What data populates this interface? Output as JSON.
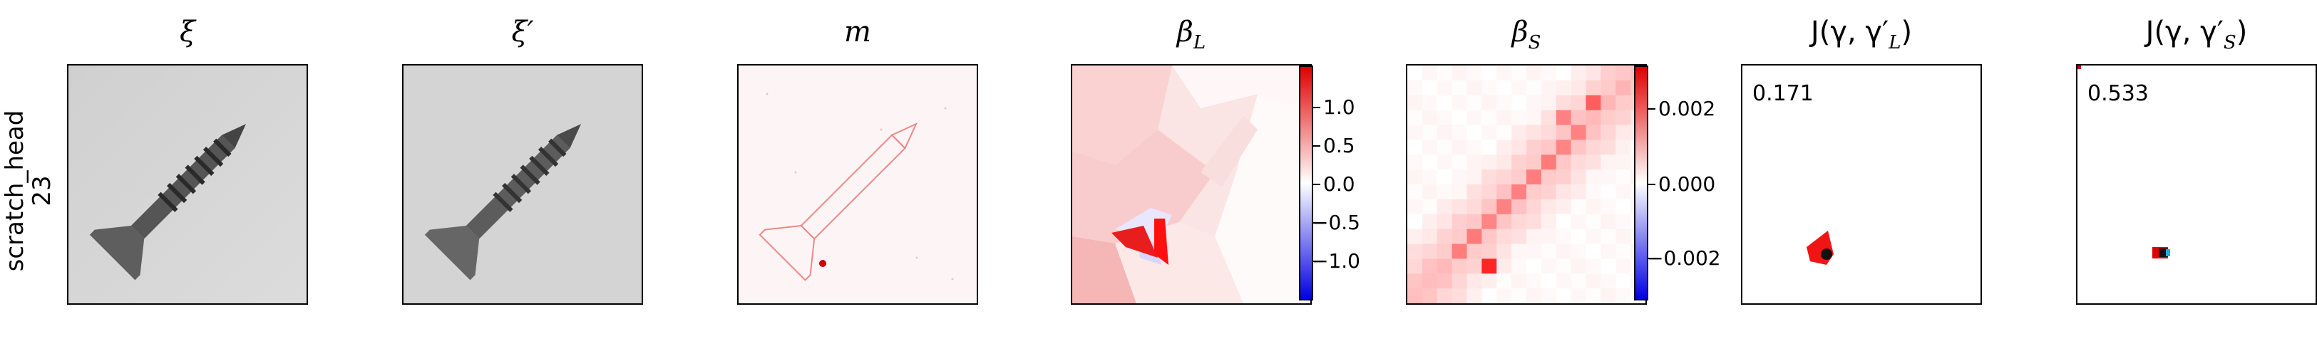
{
  "row_label": {
    "line1": "scratch_head",
    "line2": "23"
  },
  "panels": {
    "xi": {
      "title": "ξ"
    },
    "xi_prime": {
      "title": "ξ′"
    },
    "m": {
      "title": "m"
    },
    "beta_l": {
      "title_main": "β",
      "title_sub": "L"
    },
    "beta_s": {
      "title_main": "β",
      "title_sub": "S"
    },
    "j_l": {
      "title": "J(γ, γ′",
      "title_sub": "L",
      "title_end": ")",
      "score": "0.171"
    },
    "j_s": {
      "title": "J(γ, γ′",
      "title_sub": "S",
      "title_end": ")",
      "score": "0.533"
    }
  },
  "colorbar_l": {
    "ticks": [
      "1.0",
      "0.5",
      "0.0",
      "−0.5",
      "−1.0"
    ]
  },
  "colorbar_s": {
    "ticks": [
      "0.002",
      "0.000",
      "−0.002"
    ]
  },
  "colors": {
    "red": "#e00000",
    "blue": "#1010e0",
    "background_gray": "#d9d9d9"
  }
}
